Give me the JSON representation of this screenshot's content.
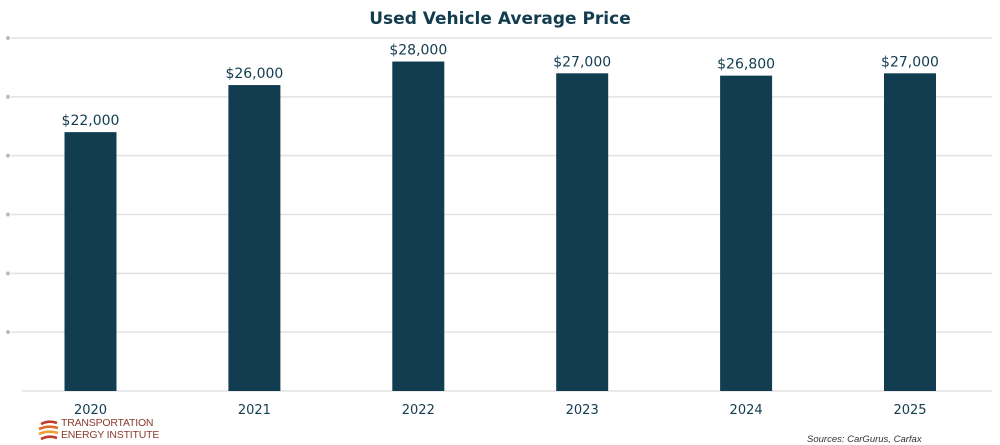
{
  "chart_data": {
    "type": "bar",
    "title": "Used Vehicle Average Price",
    "categories": [
      "2020",
      "2021",
      "2022",
      "2023",
      "2024",
      "2025"
    ],
    "values": [
      22000,
      26000,
      28000,
      27000,
      26800,
      27000
    ],
    "data_labels": [
      "$22,000",
      "$26,000",
      "$28,000",
      "$27,000",
      "$26,800",
      "$27,000"
    ],
    "xlabel": "",
    "ylabel": "",
    "ylim": [
      0,
      30000
    ],
    "ytick_step": 5000,
    "grid": true,
    "bar_color": "#123c50",
    "grid_color": "#e2e2e2"
  },
  "footer": {
    "logo_line1": "TRANSPORTATION",
    "logo_line2": "ENERGY INSTITUTE",
    "source": "Sources: CarGurus, Carfax"
  }
}
